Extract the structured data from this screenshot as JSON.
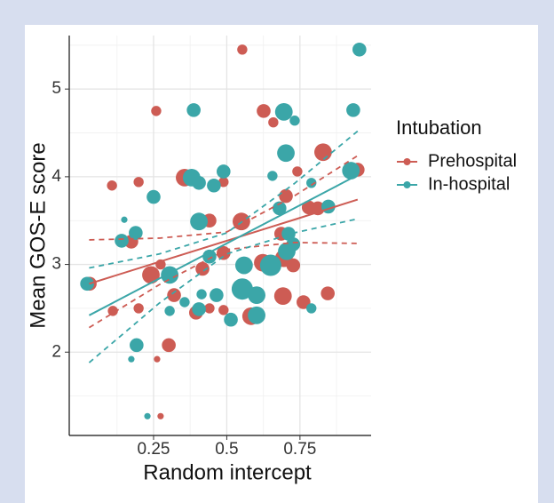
{
  "chart_data": {
    "type": "scatter",
    "x_label": "Random intercept",
    "y_label": "Mean GOS-E score",
    "legend_title": "Intubation",
    "xlim": [
      -0.038,
      0.993
    ],
    "ylim": [
      1.05,
      5.61
    ],
    "xticks": [
      0.25,
      0.5,
      0.75
    ],
    "yticks": [
      2,
      3,
      4,
      5
    ],
    "xticks_minor": [
      0.125,
      0.375,
      0.625,
      0.875
    ],
    "yticks_minor": [
      1.5,
      2.5,
      3.5,
      4.5,
      5.5
    ],
    "grid": true,
    "legend_position": "right",
    "series": [
      {
        "name": "Prehospital",
        "color": "#cd5c54",
        "x": [
          0.553,
          0.259,
          0.626,
          0.659,
          0.829,
          0.947,
          0.741,
          0.108,
          0.199,
          0.356,
          0.489,
          0.702,
          0.78,
          0.811,
          0.441,
          0.55,
          0.174,
          0.189,
          0.686,
          0.241,
          0.274,
          0.417,
          0.489,
          0.623,
          0.695,
          0.727,
          0.032,
          0.32,
          0.845,
          0.692,
          0.762,
          0.199,
          0.441,
          0.111,
          0.395,
          0.489,
          0.583,
          0.302,
          0.262,
          0.274
        ],
        "values": [
          5.45,
          4.75,
          4.75,
          4.62,
          4.28,
          4.08,
          4.06,
          3.9,
          3.94,
          3.99,
          3.94,
          3.78,
          3.65,
          3.64,
          3.5,
          3.49,
          3.26,
          3.36,
          3.35,
          2.88,
          3.0,
          2.95,
          3.13,
          3.02,
          3.07,
          2.99,
          2.78,
          2.65,
          2.67,
          2.64,
          2.57,
          2.5,
          2.5,
          2.47,
          2.45,
          2.48,
          2.41,
          2.08,
          1.92,
          1.27
        ],
        "sizes": [
          2,
          2,
          3,
          2,
          4,
          3,
          2,
          2,
          2,
          4,
          2,
          3,
          3,
          3,
          3,
          4,
          3,
          2,
          3,
          4,
          2,
          3,
          3,
          4,
          4,
          3,
          3,
          3,
          3,
          4,
          3,
          2,
          2,
          2,
          3,
          2,
          4,
          3,
          1,
          1
        ],
        "fit": {
          "x": [
            0.03,
            0.27,
            0.5,
            0.73,
            0.947
          ],
          "values": [
            2.78,
            3.03,
            3.27,
            3.51,
            3.74
          ],
          "lower": [
            2.28,
            2.77,
            3.17,
            3.25,
            3.24
          ],
          "upper": [
            3.28,
            3.3,
            3.37,
            3.78,
            4.24
          ]
        }
      },
      {
        "name": "In-hospital",
        "color": "#3ba6a8",
        "x": [
          0.953,
          0.387,
          0.695,
          0.732,
          0.932,
          0.702,
          0.924,
          0.489,
          0.38,
          0.405,
          0.456,
          0.656,
          0.789,
          0.25,
          0.68,
          0.847,
          0.15,
          0.405,
          0.189,
          0.141,
          0.711,
          0.727,
          0.441,
          0.559,
          0.65,
          0.705,
          0.023,
          0.305,
          0.553,
          0.602,
          0.356,
          0.465,
          0.414,
          0.305,
          0.405,
          0.514,
          0.789,
          0.602,
          0.192,
          0.174,
          0.229
        ],
        "values": [
          5.45,
          4.76,
          4.74,
          4.64,
          4.76,
          4.27,
          4.07,
          4.06,
          3.99,
          3.93,
          3.9,
          4.01,
          3.93,
          3.77,
          3.64,
          3.66,
          3.51,
          3.49,
          3.36,
          3.27,
          3.35,
          3.23,
          3.09,
          2.99,
          2.99,
          3.15,
          2.78,
          2.88,
          2.72,
          2.65,
          2.57,
          2.65,
          2.66,
          2.47,
          2.49,
          2.37,
          2.5,
          2.42,
          2.08,
          1.92,
          1.27
        ],
        "sizes": [
          3,
          3,
          4,
          2,
          3,
          4,
          4,
          3,
          4,
          3,
          3,
          2,
          2,
          3,
          3,
          3,
          1,
          4,
          3,
          3,
          3,
          3,
          3,
          4,
          5,
          4,
          3,
          4,
          5,
          4,
          2,
          3,
          2,
          2,
          3,
          3,
          2,
          4,
          3,
          1,
          1
        ],
        "fit": {
          "x": [
            0.03,
            0.27,
            0.5,
            0.73,
            0.947
          ],
          "values": [
            2.42,
            2.84,
            3.24,
            3.64,
            4.02
          ],
          "lower": [
            1.88,
            2.56,
            3.12,
            3.36,
            3.52
          ],
          "upper": [
            2.96,
            3.12,
            3.36,
            3.92,
            4.52
          ]
        }
      }
    ]
  }
}
